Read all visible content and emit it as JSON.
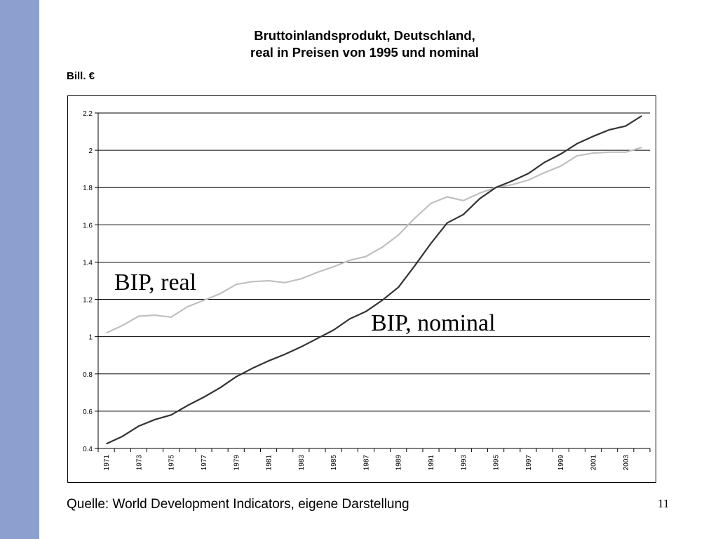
{
  "slide": {
    "title_line1": "Bruttoinlandsprodukt, Deutschland,",
    "title_line2": "real in Preisen von 1995 und nominal",
    "unit_label": "Bill. €",
    "source": "Quelle: World Development Indicators, eigene Darstellung",
    "page_number": "11",
    "accent_color": "#8c9fce"
  },
  "chart_data": {
    "type": "line",
    "title": "Bruttoinlandsprodukt, Deutschland, real in Preisen von 1995 und nominal",
    "ylabel": "Bill. €",
    "xlabel": "",
    "ylim": [
      0.4,
      2.2
    ],
    "yticks": [
      0.4,
      0.6,
      0.8,
      1,
      1.2,
      1.4,
      1.6,
      1.8,
      2,
      2.2
    ],
    "xtick_labels": [
      "1971",
      "1973",
      "1975",
      "1977",
      "1979",
      "1981",
      "1983",
      "1985",
      "1987",
      "1989",
      "1991",
      "1993",
      "1995",
      "1997",
      "1999",
      "2001",
      "2003"
    ],
    "grid": "horizontal",
    "x": [
      1971,
      1972,
      1973,
      1974,
      1975,
      1976,
      1977,
      1978,
      1979,
      1980,
      1981,
      1982,
      1983,
      1984,
      1985,
      1986,
      1987,
      1988,
      1989,
      1990,
      1991,
      1992,
      1993,
      1994,
      1995,
      1996,
      1997,
      1998,
      1999,
      2000,
      2001,
      2002,
      2003,
      2004
    ],
    "series": [
      {
        "name": "BIP, real",
        "color": "#c0c0c0",
        "values": [
          1.02,
          1.06,
          1.11,
          1.115,
          1.105,
          1.16,
          1.195,
          1.23,
          1.28,
          1.295,
          1.3,
          1.29,
          1.31,
          1.345,
          1.375,
          1.41,
          1.43,
          1.48,
          1.545,
          1.635,
          1.715,
          1.75,
          1.73,
          1.77,
          1.8,
          1.815,
          1.84,
          1.88,
          1.915,
          1.97,
          1.985,
          1.99,
          1.99,
          2.015
        ]
      },
      {
        "name": "BIP, nominal",
        "color": "#333333",
        "values": [
          0.425,
          0.465,
          0.52,
          0.555,
          0.58,
          0.63,
          0.675,
          0.725,
          0.785,
          0.83,
          0.87,
          0.905,
          0.945,
          0.99,
          1.035,
          1.095,
          1.135,
          1.195,
          1.265,
          1.38,
          1.5,
          1.61,
          1.655,
          1.74,
          1.8,
          1.835,
          1.875,
          1.935,
          1.98,
          2.035,
          2.075,
          2.11,
          2.13,
          2.185
        ]
      }
    ]
  }
}
